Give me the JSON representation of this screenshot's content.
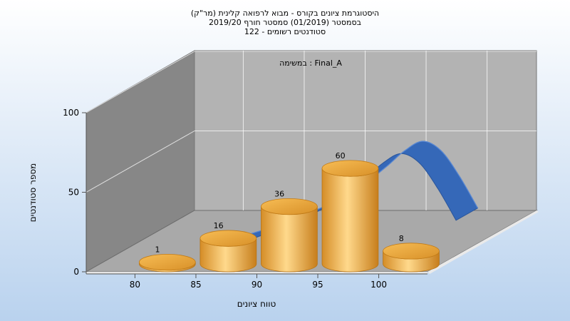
{
  "chart_data": {
    "type": "bar",
    "title_lines": [
      "היסטוגרמת ציונים בקורס - מבוא לרפואה קלינית (מר\"ק)",
      "בסמסטר  (01/2019)  סמסטר חורף 2019/20",
      "סטודנטים רשומים - 122"
    ],
    "subtitle": "במשימה : Final_A",
    "xlabel": "טווח ציונים",
    "ylabel": "מספר סטודנטים",
    "x_ticks": [
      "80",
      "85",
      "90",
      "95",
      "100"
    ],
    "y_ticks": [
      "0",
      "50",
      "100"
    ],
    "ylim": [
      0,
      100
    ],
    "xlim": [
      76,
      104
    ],
    "bars": [
      {
        "x": 81.5,
        "value": 1,
        "label": "1"
      },
      {
        "x": 86.5,
        "value": 16,
        "label": "16"
      },
      {
        "x": 91.5,
        "value": 36,
        "label": "36"
      },
      {
        "x": 96.5,
        "value": 60,
        "label": "60"
      },
      {
        "x": 101.5,
        "value": 8,
        "label": "8"
      }
    ],
    "curve": [
      {
        "x": 84.5,
        "y": 3
      },
      {
        "x": 87,
        "y": 9
      },
      {
        "x": 90,
        "y": 18
      },
      {
        "x": 92,
        "y": 25
      },
      {
        "x": 94,
        "y": 34
      },
      {
        "x": 96,
        "y": 46
      },
      {
        "x": 97.5,
        "y": 56
      },
      {
        "x": 99,
        "y": 62
      },
      {
        "x": 100.5,
        "y": 56
      },
      {
        "x": 102,
        "y": 40
      },
      {
        "x": 103.5,
        "y": 20
      }
    ],
    "grid": true,
    "colors": {
      "bar_light": "#ffd98c",
      "bar_dark": "#c77e1c",
      "curve": "#3568b8",
      "floor": "#a9a9a9",
      "back_wall": "#b3b3b3",
      "side_wall": "#878787"
    }
  }
}
